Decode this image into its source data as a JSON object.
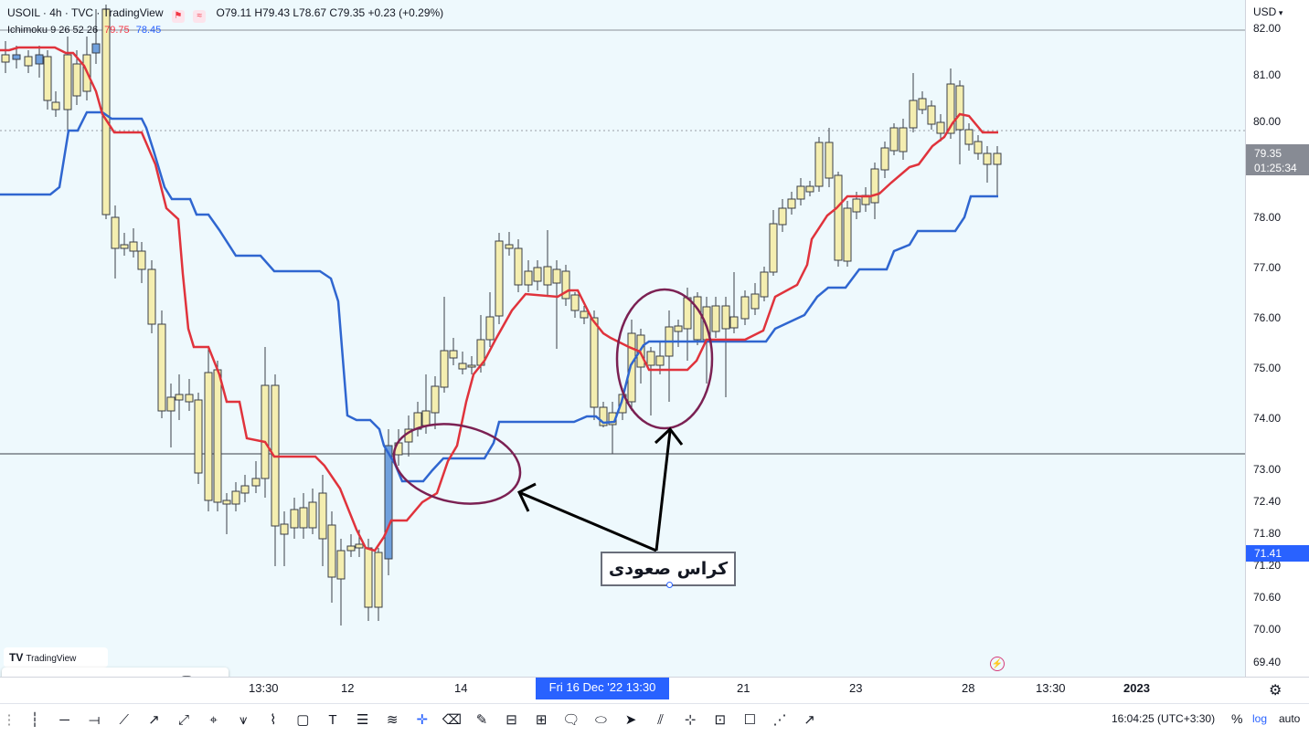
{
  "legend": {
    "symbol": "USOIL · 4h · TVC · TradingView",
    "flag_icon": "flag-icon",
    "wave_icon": "wave-icon",
    "ohlc": "O79.11 H79.43 L78.67 C79.35 +0.23 (+0.29%)",
    "indicator_name": "Ichimoku 9 26 52 26",
    "indicator_v1": "79.75",
    "indicator_v2": "78.45"
  },
  "price_axis": {
    "currency": "USD",
    "labels": [
      "82.00",
      "81.00",
      "80.00",
      "79.35",
      "78.00",
      "77.00",
      "76.00",
      "75.00",
      "74.00",
      "73.00",
      "72.40",
      "71.80",
      "71.20",
      "70.60",
      "70.00",
      "69.40"
    ],
    "last_price": "79.35",
    "countdown": "01:25:34",
    "cursor_price": "71.41"
  },
  "time_axis": {
    "labels": [
      "13:30",
      "12",
      "14",
      "21",
      "23",
      "28",
      "13:30"
    ],
    "year_label": "2023",
    "cursor_time": "Fri 16 Dec '22   13:30",
    "settings_icon": "gear-icon"
  },
  "annotation": {
    "text": "کراس صعودی"
  },
  "watermark": {
    "logo": "TV",
    "text": "TradingView"
  },
  "draw_toolbar": {
    "icons": [
      "drag-handle-icon",
      "apps-icon",
      "text-tool-icon",
      "font-size-label",
      "settings-icon",
      "lock-icon",
      "trash-icon",
      "more-icon"
    ],
    "font_size": "32"
  },
  "bottom_toolbar": {
    "icons": [
      "vertical-line-icon",
      "horizontal-line-icon",
      "horizontal-ray-icon",
      "trend-line-icon",
      "ray-icon",
      "extended-line-icon",
      "pin-icon",
      "pitchfork-icon",
      "path-icon",
      "rectangle-icon",
      "text-icon",
      "fib-retracement-icon",
      "fib-channel-icon",
      "crosshair-icon",
      "eraser-icon",
      "brush-icon",
      "long-position-icon",
      "short-position-icon",
      "callout-icon",
      "ellipse-icon",
      "cursor-icon",
      "parallel-channel-icon",
      "measure-icon",
      "price-range-icon",
      "note-icon",
      "polyline-icon",
      "arrow-icon"
    ]
  },
  "status_bar": {
    "clock": "16:04:25 (UTC+3:30)",
    "percent": "%",
    "log": "log",
    "auto": "auto"
  },
  "colors": {
    "background": "#eef9fd",
    "candle_up": "#6fa0dd",
    "candle_down": "#f4eeb0",
    "tenkan": "#e0333c",
    "kijun": "#2f66d0",
    "annotation": "#7b2153",
    "cursor": "#2962ff"
  }
}
